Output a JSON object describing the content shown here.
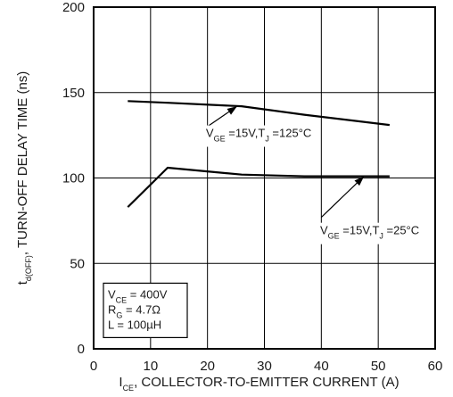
{
  "chart_data": {
    "type": "line",
    "title": "",
    "xlabel": {
      "prefix": "I",
      "sub": "CE",
      "rest": ", COLLECTOR-TO-EMITTER CURRENT (A)"
    },
    "ylabel": {
      "prefix": "t",
      "sub": "d(OFF)",
      "rest": ", TURN-OFF DELAY TIME (ns)"
    },
    "xlim": [
      0,
      60
    ],
    "ylim": [
      0,
      200
    ],
    "xticks": [
      0,
      10,
      20,
      30,
      40,
      50,
      60
    ],
    "yticks": [
      0,
      50,
      100,
      150,
      200
    ],
    "grid": true,
    "series": [
      {
        "x": [
          6,
          13,
          26,
          37,
          52
        ],
        "y": [
          145,
          144,
          142,
          137,
          131
        ]
      },
      {
        "x": [
          6,
          13,
          26,
          37,
          52
        ],
        "y": [
          83,
          106,
          102,
          101,
          101
        ]
      }
    ],
    "annotations": [
      {
        "id": "tj125",
        "parts": [
          [
            "V",
            ""
          ],
          [
            "GE",
            "sub"
          ],
          [
            " =15V,T",
            ""
          ],
          [
            "J",
            "sub"
          ],
          [
            " =125°C",
            ""
          ]
        ],
        "text_at": [
          29,
          124
        ],
        "arrow_from": [
          19.5,
          129
        ],
        "arrow_to": [
          25.2,
          142
        ]
      },
      {
        "id": "tj25",
        "parts": [
          [
            "V",
            ""
          ],
          [
            "GE",
            "sub"
          ],
          [
            " =15V,T",
            ""
          ],
          [
            "J",
            "sub"
          ],
          [
            " =25°C",
            ""
          ]
        ],
        "text_at": [
          48.5,
          67
        ],
        "arrow_from": [
          40,
          77
        ],
        "arrow_to": [
          47.5,
          101
        ]
      }
    ],
    "conditions": [
      [
        [
          "V",
          ""
        ],
        [
          "CE",
          "sub"
        ],
        [
          " = 400V",
          ""
        ]
      ],
      [
        [
          "R",
          ""
        ],
        [
          "G",
          "sub"
        ],
        [
          " = 4.7Ω",
          ""
        ]
      ],
      [
        [
          "L = 100µH",
          ""
        ]
      ]
    ]
  }
}
